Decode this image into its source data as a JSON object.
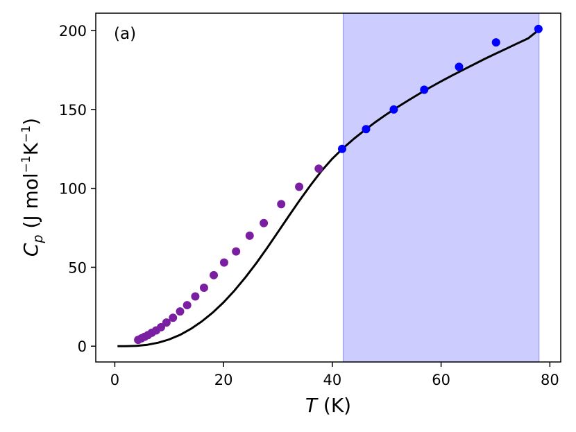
{
  "chart_data": {
    "type": "scatter",
    "panel_label": "(a)",
    "xlabel": {
      "symbol": "T",
      "unit": " (K)"
    },
    "ylabel": {
      "symbol": "C",
      "subscript": "p",
      "unit_open": " (J mol",
      "exp1": "−1",
      "mid": "K",
      "exp2": "−1",
      "close": ")"
    },
    "xlim": [
      -3.5,
      82
    ],
    "ylim": [
      -10,
      211
    ],
    "xticks": [
      0,
      20,
      40,
      60,
      80
    ],
    "yticks": [
      0,
      50,
      100,
      150,
      200
    ],
    "grid": false,
    "highlight_region": {
      "x_start": 42,
      "x_end": 78,
      "color": "#ccccff",
      "edge_color": "#9a9af0"
    },
    "fit_curve": {
      "color": "#000000",
      "points": [
        [
          0.5,
          0
        ],
        [
          2,
          0
        ],
        [
          4,
          0.2
        ],
        [
          6,
          0.9
        ],
        [
          8,
          2.2
        ],
        [
          10,
          4.3
        ],
        [
          12,
          7.2
        ],
        [
          14,
          11.0
        ],
        [
          16,
          15.7
        ],
        [
          18,
          21.3
        ],
        [
          20,
          27.8
        ],
        [
          22,
          35.2
        ],
        [
          24,
          43.5
        ],
        [
          26,
          52.5
        ],
        [
          28,
          62.2
        ],
        [
          30,
          72.3
        ],
        [
          32,
          82.5
        ],
        [
          34,
          92.5
        ],
        [
          36,
          102
        ],
        [
          38,
          111
        ],
        [
          40,
          118.8
        ],
        [
          42,
          125.5
        ],
        [
          44,
          131.5
        ],
        [
          46,
          137
        ],
        [
          48,
          142.2
        ],
        [
          50,
          147
        ],
        [
          52,
          151.5
        ],
        [
          54,
          155.8
        ],
        [
          56,
          160
        ],
        [
          58,
          164
        ],
        [
          60,
          167.8
        ],
        [
          62,
          171.5
        ],
        [
          64,
          175
        ],
        [
          66,
          178.5
        ],
        [
          68,
          182
        ],
        [
          70,
          185.3
        ],
        [
          72,
          188.5
        ],
        [
          74,
          191.8
        ],
        [
          76,
          195
        ],
        [
          78,
          200.5
        ]
      ]
    },
    "series": [
      {
        "color": "#7a1fa2",
        "x": [
          4.3,
          4.9,
          5.5,
          6.1,
          6.8,
          7.6,
          8.5,
          9.5,
          10.7,
          12.0,
          13.3,
          14.8,
          16.4,
          18.2,
          20.1,
          22.3,
          24.8,
          27.4,
          30.6,
          33.9,
          37.5
        ],
        "y": [
          4,
          5,
          6,
          7,
          8.5,
          10,
          12,
          15,
          18,
          22,
          26,
          31.5,
          37,
          45,
          53,
          60,
          70,
          78,
          90,
          101,
          112.5
        ]
      },
      {
        "color": "#0000ff",
        "x": [
          41.8,
          46.2,
          51.3,
          56.9,
          63.3,
          70.1,
          77.9
        ],
        "y": [
          125,
          137.5,
          150,
          162.5,
          177,
          192.5,
          201
        ]
      }
    ]
  }
}
